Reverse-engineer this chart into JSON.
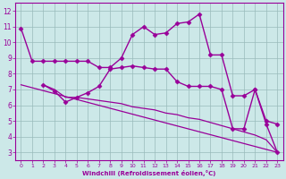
{
  "bg_color": "#cce8e8",
  "line_color": "#990099",
  "grid_color": "#99bbbb",
  "xlabel": "Windchill (Refroidissement éolien,°C)",
  "ylim": [
    2.5,
    12.5
  ],
  "xlim": [
    -0.5,
    23.5
  ],
  "yticks": [
    3,
    4,
    5,
    6,
    7,
    8,
    9,
    10,
    11,
    12
  ],
  "xticks": [
    0,
    1,
    2,
    3,
    4,
    5,
    6,
    7,
    8,
    9,
    10,
    11,
    12,
    13,
    14,
    15,
    16,
    17,
    18,
    19,
    20,
    21,
    22,
    23
  ],
  "lines": [
    {
      "x": [
        0,
        1,
        2,
        3,
        4,
        5,
        6,
        7,
        8,
        9,
        10,
        11,
        12,
        13,
        14,
        15,
        16,
        17,
        18,
        19,
        20,
        21,
        22,
        23
      ],
      "y": [
        10.9,
        8.8,
        8.8,
        8.8,
        8.8,
        8.8,
        8.8,
        8.4,
        8.4,
        9.0,
        10.5,
        11.0,
        10.5,
        10.6,
        11.2,
        11.3,
        11.8,
        9.2,
        9.2,
        6.6,
        6.6,
        7.0,
        4.8,
        3.0
      ],
      "marker": "D",
      "markersize": 2.5,
      "linewidth": 1.0
    },
    {
      "x": [
        2,
        3,
        4,
        5,
        6,
        7,
        8,
        9,
        10,
        11,
        12,
        13,
        14,
        15,
        16,
        17,
        18,
        19,
        20,
        21,
        22,
        23
      ],
      "y": [
        7.3,
        6.9,
        6.2,
        6.5,
        6.8,
        7.2,
        8.3,
        8.4,
        8.5,
        8.4,
        8.3,
        8.3,
        7.5,
        7.2,
        7.2,
        7.2,
        7.0,
        4.5,
        4.5,
        7.0,
        5.0,
        4.8
      ],
      "marker": "D",
      "markersize": 2.5,
      "linewidth": 1.0
    },
    {
      "x": [
        2,
        3,
        4,
        5,
        6,
        7,
        8,
        9,
        10,
        11,
        12,
        13,
        14,
        15,
        16,
        17,
        18,
        19,
        20,
        21,
        22,
        23
      ],
      "y": [
        7.3,
        7.0,
        6.5,
        6.5,
        6.4,
        6.3,
        6.2,
        6.1,
        5.9,
        5.8,
        5.7,
        5.5,
        5.4,
        5.2,
        5.1,
        4.9,
        4.7,
        4.5,
        4.3,
        4.1,
        3.8,
        3.0
      ],
      "marker": null,
      "markersize": 0,
      "linewidth": 0.9
    },
    {
      "x": [
        0,
        23
      ],
      "y": [
        7.3,
        3.0
      ],
      "marker": null,
      "markersize": 0,
      "linewidth": 0.9
    }
  ]
}
